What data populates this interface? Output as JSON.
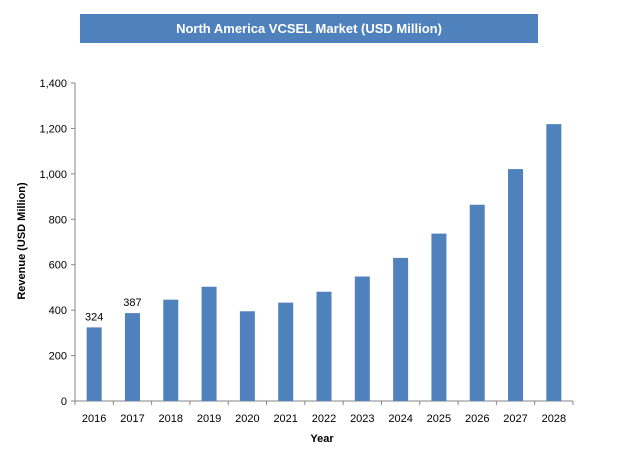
{
  "chart_data": {
    "type": "bar",
    "title": "North America VCSEL Market (USD Million)",
    "xlabel": "Year",
    "ylabel": "Revenue (USD Million)",
    "categories": [
      "2016",
      "2017",
      "2018",
      "2019",
      "2020",
      "2021",
      "2022",
      "2023",
      "2024",
      "2025",
      "2026",
      "2027",
      "2028"
    ],
    "values": [
      324,
      387,
      446,
      503,
      395,
      433,
      481,
      548,
      630,
      737,
      864,
      1021,
      1219
    ],
    "data_labels": [
      {
        "category": "2016",
        "text": "324"
      },
      {
        "category": "2017",
        "text": "387"
      }
    ],
    "ylim": [
      0,
      1400
    ],
    "yticks": [
      0,
      200,
      400,
      600,
      800,
      1000,
      1200,
      1400
    ],
    "ytick_labels": [
      "0",
      "200",
      "400",
      "600",
      "800",
      "1,000",
      "1,200",
      "1,400"
    ],
    "grid": false,
    "legend": "none",
    "bar_color": "#4f81bd"
  }
}
